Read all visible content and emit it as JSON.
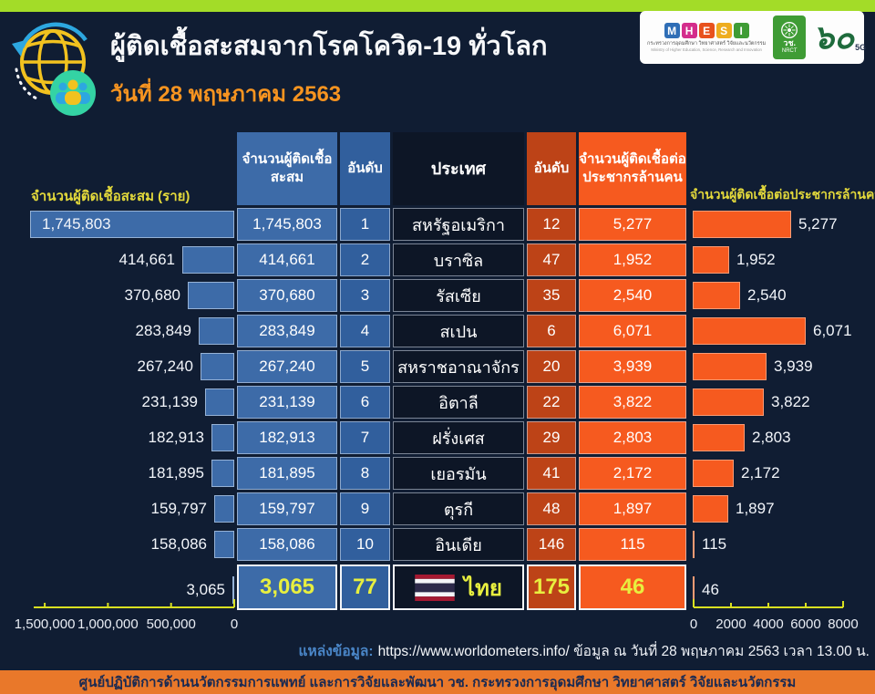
{
  "header": {
    "title": "ผู้ติดเชื้อสะสมจากโรคโควิด-19 ทั่วโลก",
    "date": "วันที่ 28 พฤษภาคม 2563"
  },
  "logos": {
    "mhesi": {
      "letters": [
        "M",
        "H",
        "E",
        "S",
        "I"
      ],
      "colors": [
        "#2f6eb6",
        "#d42d8c",
        "#e8521d",
        "#eead1e",
        "#3f9c35"
      ],
      "thai_line": "กระทรวงการอุดมศึกษา วิทยาศาสตร์ วิจัยและนวัตกรรม",
      "eng_line": "Ministry of Higher Education, Science, Research and Innovation"
    },
    "nrct": {
      "thai": "วช.",
      "eng": "NRCT"
    },
    "anniversary": {
      "numeral": "๖๐",
      "label": "5G"
    }
  },
  "table": {
    "headers": {
      "cumulative_l1": "จำนวนผู้ติดเชื้อ",
      "cumulative_l2": "สะสม",
      "rank": "อันดับ",
      "country": "ประเทศ",
      "rank_pm": "อันดับ",
      "per_million_l1": "จำนวนผู้ติดเชื้อต่อ",
      "per_million_l2": "ประชากรล้านคน"
    },
    "rows": [
      {
        "cumulative": "1,745,803",
        "rank": "1",
        "country": "สหรัฐอเมริกา",
        "rank_pm": "12",
        "per_million": "5,277"
      },
      {
        "cumulative": "414,661",
        "rank": "2",
        "country": "บราซิล",
        "rank_pm": "47",
        "per_million": "1,952"
      },
      {
        "cumulative": "370,680",
        "rank": "3",
        "country": "รัสเซีย",
        "rank_pm": "35",
        "per_million": "2,540"
      },
      {
        "cumulative": "283,849",
        "rank": "4",
        "country": "สเปน",
        "rank_pm": "6",
        "per_million": "6,071"
      },
      {
        "cumulative": "267,240",
        "rank": "5",
        "country": "สหราชอาณาจักร",
        "rank_pm": "20",
        "per_million": "3,939"
      },
      {
        "cumulative": "231,139",
        "rank": "6",
        "country": "อิตาลี",
        "rank_pm": "22",
        "per_million": "3,822"
      },
      {
        "cumulative": "182,913",
        "rank": "7",
        "country": "ฝรั่งเศส",
        "rank_pm": "29",
        "per_million": "2,803"
      },
      {
        "cumulative": "181,895",
        "rank": "8",
        "country": "เยอรมัน",
        "rank_pm": "41",
        "per_million": "2,172"
      },
      {
        "cumulative": "159,797",
        "rank": "9",
        "country": "ตุรกี",
        "rank_pm": "48",
        "per_million": "1,897"
      },
      {
        "cumulative": "158,086",
        "rank": "10",
        "country": "อินเดีย",
        "rank_pm": "146",
        "per_million": "115"
      }
    ],
    "thailand": {
      "cumulative": "3,065",
      "rank": "77",
      "country": "ไทย",
      "rank_pm": "175",
      "per_million": "46"
    }
  },
  "chart_data": [
    {
      "type": "bar",
      "orientation": "horizontal-right-aligned",
      "title": "จำนวนผู้ติดเชื้อสะสม (ราย)",
      "categories": [
        "สหรัฐอเมริกา",
        "บราซิล",
        "รัสเซีย",
        "สเปน",
        "สหราชอาณาจักร",
        "อิตาลี",
        "ฝรั่งเศส",
        "เยอรมัน",
        "ตุรกี",
        "อินเดีย",
        "ไทย"
      ],
      "values": [
        1745803,
        414661,
        370680,
        283849,
        267240,
        231139,
        182913,
        181895,
        159797,
        158086,
        3065
      ],
      "labels": [
        "1,745,803",
        "414,661",
        "370,680",
        "283,849",
        "267,240",
        "231,139",
        "182,913",
        "181,895",
        "159,797",
        "158,086",
        "3,065"
      ],
      "axis_ticks": [
        "1,500,000",
        "1,000,000",
        "500,000",
        "0"
      ],
      "axis_tick_values": [
        1500000,
        1000000,
        500000,
        0
      ],
      "axis_max": 1616000,
      "bar_color": "#3d6ba8",
      "grid": false,
      "legend": "none"
    },
    {
      "type": "bar",
      "orientation": "horizontal-left-aligned",
      "title": "จำนวนผู้ติดเชื้อต่อประชากรล้านคน",
      "categories": [
        "สหรัฐอเมริกา",
        "บราซิล",
        "รัสเซีย",
        "สเปน",
        "สหราชอาณาจักร",
        "อิตาลี",
        "ฝรั่งเศส",
        "เยอรมัน",
        "ตุรกี",
        "อินเดีย",
        "ไทย"
      ],
      "values": [
        5277,
        1952,
        2540,
        6071,
        3939,
        3822,
        2803,
        2172,
        1897,
        115,
        46
      ],
      "labels": [
        "5,277",
        "1,952",
        "2,540",
        "6,071",
        "3,939",
        "3,822",
        "2,803",
        "2,172",
        "1,897",
        "115",
        "46"
      ],
      "axis_ticks": [
        "0",
        "2000",
        "4000",
        "6000",
        "8000"
      ],
      "axis_tick_values": [
        0,
        2000,
        4000,
        6000,
        8000
      ],
      "axis_max": 8537,
      "bar_color": "#f65a1f",
      "grid": false,
      "legend": "none"
    }
  ],
  "source": {
    "label": "แหล่งข้อมูล:",
    "url": "https://www.worldometers.info/",
    "detail": "ข้อมูล ณ วันที่ 28 พฤษภาคม 2563 เวลา 13.00 น."
  },
  "footer": {
    "text": "ศูนย์ปฏิบัติการด้านนวัตกรรมการแพทย์ และการวิจัยและพัฒนา  วช.   กระทรวงการอุดมศึกษา วิทยาศาสตร์ วิจัยและนวัตกรรม"
  }
}
